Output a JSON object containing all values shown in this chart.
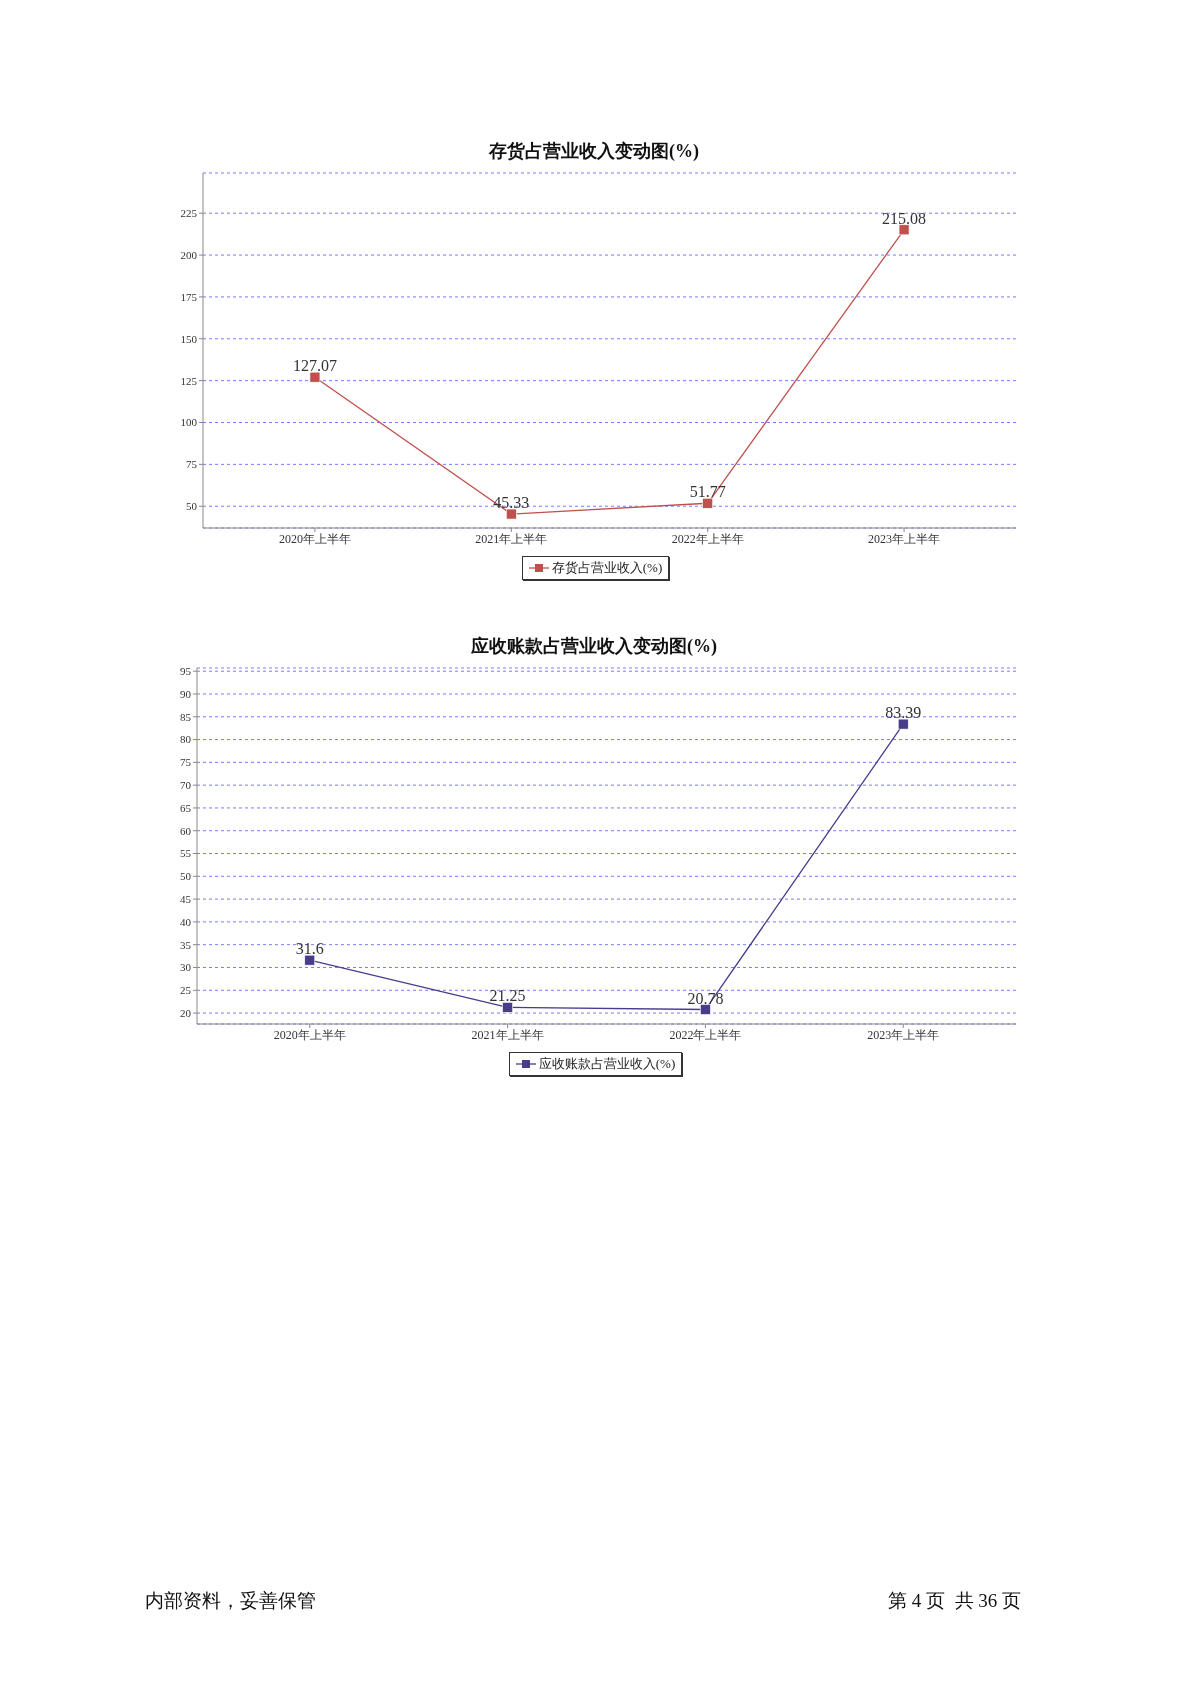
{
  "chart_data": [
    {
      "type": "line",
      "title": "存货占营业收入变动图(%)",
      "categories": [
        "2020年上半年",
        "2021年上半年",
        "2022年上半年",
        "2023年上半年"
      ],
      "series": [
        {
          "name": "存货占营业收入(%)",
          "color": "#c0504d",
          "values": [
            127.07,
            45.33,
            51.77,
            215.08
          ]
        }
      ],
      "ylim": [
        37,
        249
      ],
      "yticks": [
        50,
        75,
        100,
        125,
        150,
        175,
        200,
        225
      ],
      "grid": "y",
      "legend": "bottom",
      "marker": "square",
      "data_labels": true
    },
    {
      "type": "line",
      "title": "应收账款占营业收入变动图(%)",
      "categories": [
        "2020年上半年",
        "2021年上半年",
        "2022年上半年",
        "2023年上半年"
      ],
      "series": [
        {
          "name": "应收账款占营业收入(%)",
          "color": "#483d8b",
          "values": [
            31.6,
            21.25,
            20.78,
            83.39
          ]
        }
      ],
      "ylim": [
        17.6,
        95.7
      ],
      "yticks": [
        20,
        25,
        30,
        35,
        40,
        45,
        50,
        55,
        60,
        65,
        70,
        75,
        80,
        85,
        90,
        95
      ],
      "grid": "y",
      "legend": "bottom",
      "marker": "square",
      "data_labels": true,
      "annotations": [
        "内部资料，妥善保管",
        "第 4 页  共 36 页"
      ]
    }
  ]
}
